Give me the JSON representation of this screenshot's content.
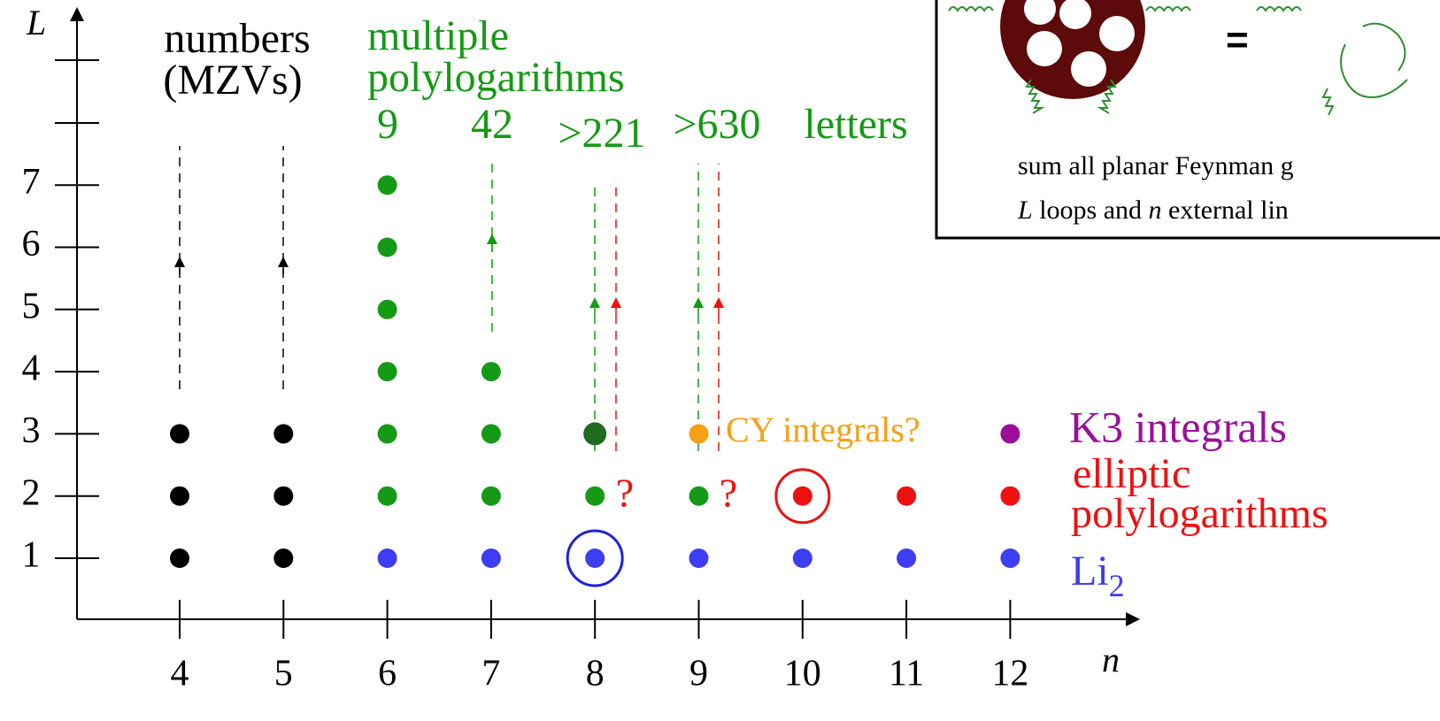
{
  "axes": {
    "x_label": "n",
    "y_label": "L",
    "x_ticks": [
      "4",
      "5",
      "6",
      "7",
      "8",
      "9",
      "10",
      "11",
      "12"
    ],
    "y_ticks": [
      "1",
      "2",
      "3",
      "4",
      "5",
      "6",
      "7"
    ]
  },
  "headers": {
    "numbers": [
      "numbers",
      "(MZVs)"
    ],
    "polylogs": [
      "multiple",
      "polylogarithms"
    ],
    "letters": [
      "9",
      "42",
      ">221",
      ">630",
      "letters"
    ]
  },
  "labels": {
    "cy": "CY integrals?",
    "k3": "K3 integrals",
    "elliptic": [
      "elliptic",
      "polylogarithms"
    ],
    "li": "Li",
    "li_sub": "2",
    "question": "?"
  },
  "dots": [
    {
      "color": "#000000",
      "points": [
        [
          4,
          1
        ],
        [
          4,
          2
        ],
        [
          4,
          3
        ],
        [
          5,
          1
        ],
        [
          5,
          2
        ],
        [
          5,
          3
        ]
      ]
    },
    {
      "color": "#159a15",
      "points": [
        [
          6,
          2
        ],
        [
          6,
          3
        ],
        [
          6,
          4
        ],
        [
          6,
          5
        ],
        [
          6,
          6
        ],
        [
          6,
          7
        ],
        [
          7,
          2
        ],
        [
          7,
          3
        ],
        [
          7,
          4
        ],
        [
          8,
          2
        ],
        [
          9,
          2
        ]
      ]
    },
    {
      "color": "#1f6b1f",
      "points": [
        [
          8,
          3
        ]
      ]
    },
    {
      "color": "#f5a016",
      "points": [
        [
          9,
          3
        ]
      ]
    },
    {
      "color": "#9a109a",
      "points": [
        [
          12,
          3
        ]
      ]
    },
    {
      "color": "#ee1111",
      "points": [
        [
          10,
          2
        ],
        [
          11,
          2
        ],
        [
          12,
          2
        ]
      ]
    },
    {
      "color": "#3d3df2",
      "points": [
        [
          6,
          1
        ],
        [
          7,
          1
        ],
        [
          8,
          1
        ],
        [
          9,
          1
        ],
        [
          10,
          1
        ],
        [
          11,
          1
        ],
        [
          12,
          1
        ]
      ]
    }
  ],
  "inset": {
    "caption": [
      "sum all planar Feynman g",
      "L",
      " loops and ",
      "n",
      " external lin"
    ],
    "equals": "="
  }
}
